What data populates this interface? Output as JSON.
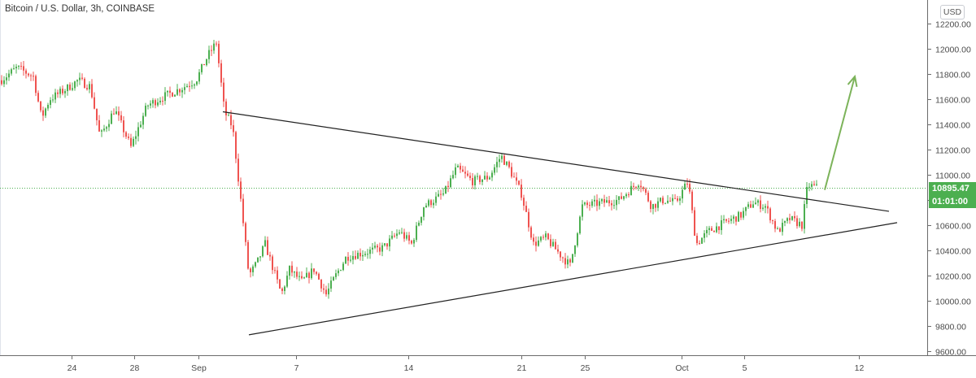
{
  "header": {
    "title": "Bitcoin / U.S. Dollar, 3h, COINBASE",
    "currency_badge": "USD"
  },
  "price_tags": {
    "last_price": "10895.47",
    "countdown": "01:01:00"
  },
  "colors": {
    "up": "#4caf50",
    "down": "#ef5350",
    "arrow": "#7cb35a",
    "price_line": "#4caf50"
  },
  "chart_data": {
    "type": "candlestick",
    "title": "Bitcoin / U.S. Dollar, 3h, COINBASE",
    "ylim": [
      9550,
      12300
    ],
    "y_ticks": [
      9600,
      9800,
      10000,
      10200,
      10400,
      10600,
      10800,
      11000,
      11200,
      11400,
      11600,
      11800,
      12000,
      12200
    ],
    "x_ticks": [
      "24",
      "28",
      "Sep",
      "7",
      "14",
      "21",
      "25",
      "Oct",
      "5",
      "12"
    ],
    "last_price": 10895.47,
    "price_path": [
      [
        0,
        11750
      ],
      [
        20,
        11850
      ],
      [
        40,
        11780
      ],
      [
        50,
        11450
      ],
      [
        60,
        11600
      ],
      [
        80,
        11680
      ],
      [
        95,
        11750
      ],
      [
        110,
        11700
      ],
      [
        122,
        11300
      ],
      [
        140,
        11520
      ],
      [
        160,
        11220
      ],
      [
        180,
        11550
      ],
      [
        200,
        11620
      ],
      [
        220,
        11680
      ],
      [
        240,
        11750
      ],
      [
        255,
        11950
      ],
      [
        265,
        12050
      ],
      [
        275,
        11500
      ],
      [
        285,
        11380
      ],
      [
        295,
        10800
      ],
      [
        305,
        10200
      ],
      [
        315,
        10300
      ],
      [
        325,
        10450
      ],
      [
        335,
        10250
      ],
      [
        345,
        10050
      ],
      [
        355,
        10250
      ],
      [
        370,
        10150
      ],
      [
        385,
        10250
      ],
      [
        400,
        10050
      ],
      [
        410,
        10180
      ],
      [
        425,
        10350
      ],
      [
        445,
        10380
      ],
      [
        470,
        10420
      ],
      [
        490,
        10550
      ],
      [
        505,
        10450
      ],
      [
        520,
        10750
      ],
      [
        545,
        10850
      ],
      [
        560,
        11050
      ],
      [
        580,
        10950
      ],
      [
        600,
        10980
      ],
      [
        615,
        11150
      ],
      [
        625,
        11050
      ],
      [
        640,
        10850
      ],
      [
        655,
        10450
      ],
      [
        670,
        10500
      ],
      [
        690,
        10350
      ],
      [
        700,
        10280
      ],
      [
        715,
        10750
      ],
      [
        740,
        10780
      ],
      [
        760,
        10800
      ],
      [
        785,
        10950
      ],
      [
        800,
        10750
      ],
      [
        815,
        10800
      ],
      [
        830,
        10780
      ],
      [
        845,
        10950
      ],
      [
        855,
        10450
      ],
      [
        870,
        10550
      ],
      [
        890,
        10620
      ],
      [
        910,
        10680
      ],
      [
        925,
        10780
      ],
      [
        940,
        10750
      ],
      [
        955,
        10550
      ],
      [
        970,
        10650
      ],
      [
        985,
        10600
      ],
      [
        992,
        10920
      ],
      [
        1005,
        10895
      ]
    ],
    "patterns": [
      {
        "name": "triangle-upper-line",
        "from": [
          "Sep 2",
          11500
        ],
        "to": [
          "Oct 11",
          10710
        ]
      },
      {
        "name": "triangle-lower-line",
        "from": [
          "Sep 4",
          9730
        ],
        "to": [
          "Oct 11",
          10620
        ]
      },
      {
        "name": "breakout-arrow",
        "from": [
          "Oct 8",
          10880
        ],
        "to": [
          "Oct 10",
          11780
        ]
      }
    ]
  }
}
